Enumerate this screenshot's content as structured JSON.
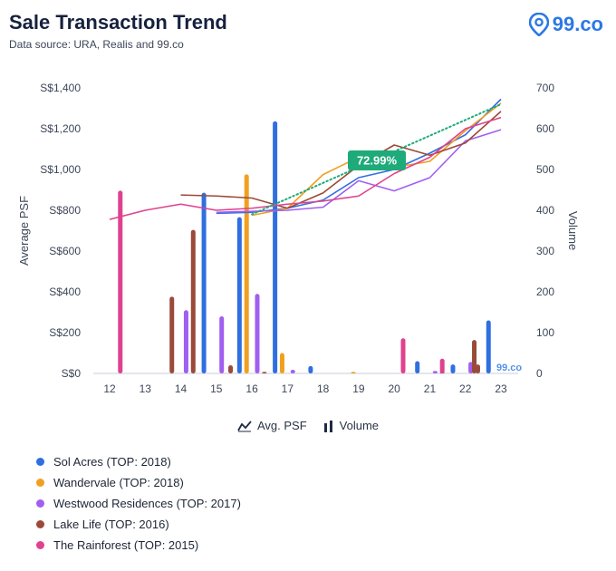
{
  "header": {
    "title": "Sale Transaction Trend",
    "subtitle": "Data source: URA, Realis and 99.co",
    "brand": "99.co"
  },
  "toggles": {
    "psf_label": "Avg. PSF",
    "volume_label": "Volume"
  },
  "callout": "72.99%",
  "watermark": "99.co",
  "chart_data": {
    "type": "bar",
    "x_categories": [
      "12",
      "13",
      "14",
      "15",
      "16",
      "17",
      "18",
      "19",
      "20",
      "21",
      "22",
      "23"
    ],
    "ylabel": "Average PSF",
    "y2label": "Volume",
    "y_ticks": [
      "S$0",
      "S$200",
      "S$400",
      "S$600",
      "S$800",
      "S$1,000",
      "S$1,200",
      "S$1,400"
    ],
    "y2_ticks": [
      "0",
      "100",
      "200",
      "300",
      "400",
      "500",
      "600",
      "700"
    ],
    "ylim": [
      0,
      1400
    ],
    "y2lim": [
      0,
      700
    ],
    "grid": false,
    "series": [
      {
        "name": "Sol Acres (TOP: 2018)",
        "color": "#2f6fe0",
        "volume": [
          [
            14.65,
            443
          ],
          [
            15.65,
            383
          ],
          [
            16.65,
            618
          ],
          [
            17.65,
            18
          ],
          [
            20.65,
            30
          ],
          [
            21.65,
            22
          ],
          [
            22.65,
            130
          ]
        ],
        "psf": [
          [
            15.0,
            785
          ],
          [
            16.0,
            790
          ],
          [
            17.0,
            810
          ],
          [
            18.0,
            850
          ],
          [
            19.0,
            960
          ],
          [
            20.0,
            1000
          ],
          [
            21.0,
            1080
          ],
          [
            22.0,
            1170
          ],
          [
            23.0,
            1345
          ]
        ]
      },
      {
        "name": "Wandervale (TOP: 2018)",
        "color": "#f0a020",
        "volume": [
          [
            15.85,
            488
          ],
          [
            16.85,
            50
          ],
          [
            18.85,
            4
          ]
        ],
        "psf": [
          [
            16.0,
            775
          ],
          [
            17.0,
            810
          ],
          [
            18.0,
            975
          ],
          [
            19.0,
            1060
          ],
          [
            20.0,
            1010
          ],
          [
            21.0,
            1040
          ],
          [
            22.0,
            1190
          ],
          [
            23.0,
            1325
          ]
        ]
      },
      {
        "name": "Westwood Residences (TOP: 2017)",
        "color": "#a05ff0",
        "volume": [
          [
            14.15,
            155
          ],
          [
            15.15,
            140
          ],
          [
            16.15,
            195
          ],
          [
            17.15,
            9
          ],
          [
            21.15,
            6
          ],
          [
            22.15,
            28
          ]
        ],
        "psf": [
          [
            15.0,
            790
          ],
          [
            16.0,
            795
          ],
          [
            17.0,
            800
          ],
          [
            18.0,
            815
          ],
          [
            19.0,
            945
          ],
          [
            20.0,
            895
          ],
          [
            21.0,
            960
          ],
          [
            22.0,
            1140
          ],
          [
            23.0,
            1195
          ]
        ]
      },
      {
        "name": "Lake Life (TOP: 2016)",
        "color": "#9a4a38",
        "volume": [
          [
            13.75,
            188
          ],
          [
            14.35,
            352
          ],
          [
            15.4,
            20
          ],
          [
            16.35,
            4
          ],
          [
            21.35,
            4
          ],
          [
            22.25,
            82
          ],
          [
            22.35,
            22
          ]
        ],
        "psf": [
          [
            14.0,
            875
          ],
          [
            15.0,
            870
          ],
          [
            16.0,
            860
          ],
          [
            17.0,
            810
          ],
          [
            18.0,
            885
          ],
          [
            19.0,
            1020
          ],
          [
            20.0,
            1120
          ],
          [
            21.0,
            1070
          ],
          [
            22.0,
            1130
          ],
          [
            23.0,
            1285
          ]
        ]
      },
      {
        "name": "The Rainforest (TOP: 2015)",
        "color": "#e0418f",
        "volume": [
          [
            12.3,
            448
          ],
          [
            20.25,
            86
          ],
          [
            21.35,
            36
          ]
        ],
        "psf": [
          [
            12.0,
            755
          ],
          [
            13.0,
            800
          ],
          [
            14.0,
            830
          ],
          [
            15.0,
            800
          ],
          [
            16.0,
            810
          ],
          [
            17.0,
            830
          ],
          [
            18.0,
            845
          ],
          [
            19.0,
            870
          ],
          [
            20.0,
            980
          ],
          [
            21.0,
            1060
          ],
          [
            22.0,
            1200
          ],
          [
            23.0,
            1255
          ]
        ]
      }
    ],
    "trendline": {
      "color": "#1faa7a",
      "points": [
        [
          16.0,
          780
        ],
        [
          23.0,
          1320
        ]
      ],
      "label": "72.99%"
    }
  },
  "legend": [
    {
      "label": "Sol Acres (TOP: 2018)",
      "color": "#2f6fe0"
    },
    {
      "label": "Wandervale (TOP: 2018)",
      "color": "#f0a020"
    },
    {
      "label": "Westwood Residences (TOP: 2017)",
      "color": "#a05ff0"
    },
    {
      "label": "Lake Life (TOP: 2016)",
      "color": "#9a4a38"
    },
    {
      "label": "The Rainforest (TOP: 2015)",
      "color": "#e0418f"
    }
  ]
}
